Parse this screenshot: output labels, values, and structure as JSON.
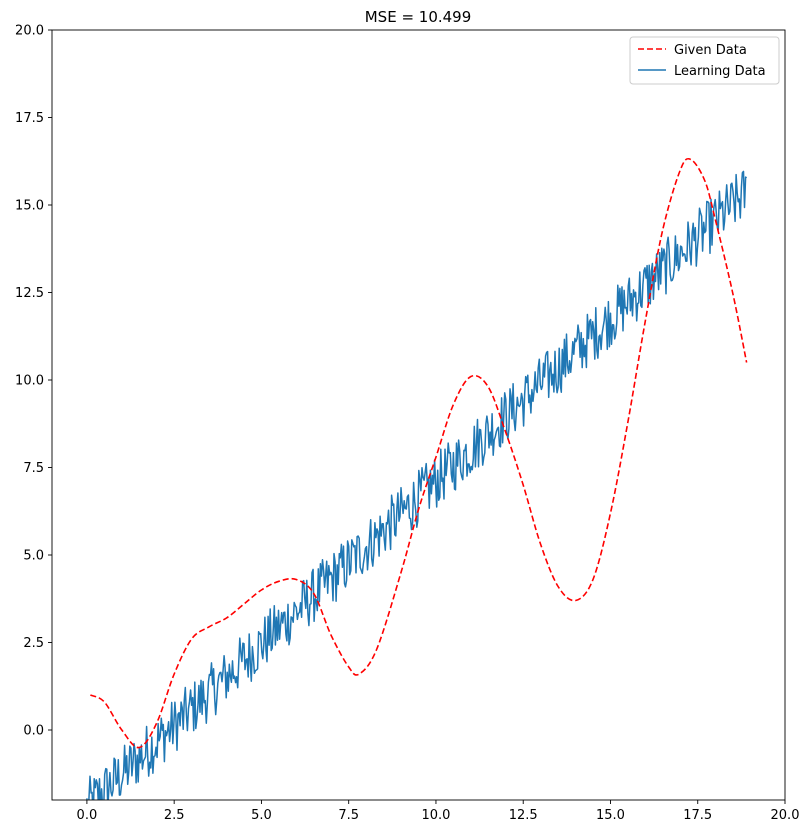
{
  "chart_data": {
    "type": "line",
    "title": "MSE = 10.499",
    "xlabel": "",
    "ylabel": "",
    "xlim": [
      -1,
      20
    ],
    "ylim": [
      -2,
      20
    ],
    "xticks": [
      0.0,
      2.5,
      5.0,
      7.5,
      10.0,
      12.5,
      15.0,
      17.5,
      20.0
    ],
    "xtick_labels": [
      "0.0",
      "2.5",
      "5.0",
      "7.5",
      "10.0",
      "12.5",
      "15.0",
      "17.5",
      "20.0"
    ],
    "yticks": [
      0.0,
      2.5,
      5.0,
      7.5,
      10.0,
      12.5,
      15.0,
      17.5,
      20.0
    ],
    "ytick_labels": [
      "0.0",
      "2.5",
      "5.0",
      "7.5",
      "10.0",
      "12.5",
      "15.0",
      "17.5",
      "20.0"
    ],
    "grid": false,
    "legend_position": "top-right",
    "series": [
      {
        "name": "Given Data",
        "style": "dashed",
        "color": "#ff0000",
        "x": [
          0.1,
          0.5,
          1.0,
          1.5,
          2.0,
          2.5,
          3.0,
          3.5,
          4.0,
          4.5,
          5.0,
          5.5,
          6.0,
          6.5,
          7.0,
          7.5,
          7.8,
          8.3,
          9.0,
          9.5,
          10.0,
          10.5,
          11.0,
          11.5,
          12.0,
          12.5,
          13.0,
          13.5,
          14.0,
          14.5,
          15.0,
          15.5,
          16.0,
          16.5,
          17.0,
          17.3,
          17.7,
          18.0,
          18.5,
          18.9
        ],
        "y": [
          1.0,
          0.8,
          0.0,
          -0.5,
          0.2,
          1.6,
          2.6,
          2.95,
          3.2,
          3.6,
          4.0,
          4.25,
          4.3,
          3.9,
          2.7,
          1.8,
          1.6,
          2.3,
          4.5,
          6.3,
          7.8,
          9.3,
          10.1,
          9.8,
          8.5,
          7.0,
          5.3,
          4.1,
          3.7,
          4.3,
          6.2,
          8.8,
          11.7,
          14.3,
          16.0,
          16.3,
          15.7,
          14.6,
          12.5,
          10.5
        ]
      },
      {
        "name": "Learning Data",
        "style": "solid",
        "color": "#1f77b4",
        "x_start": 0.0,
        "x_end": 18.9,
        "trend_intercept": -2.2,
        "trend_slope": 0.93,
        "noise_amplitude": 0.8
      }
    ]
  },
  "colors": {
    "given": "#ff0000",
    "learning": "#1f77b4",
    "axes": "#000000"
  }
}
